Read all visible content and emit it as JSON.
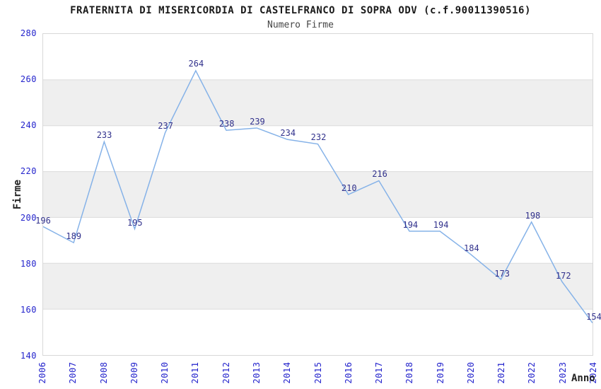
{
  "chart_data": {
    "type": "line",
    "title": "FRATERNITA DI MISERICORDIA DI CASTELFRANCO DI SOPRA ODV (c.f.90011390516)",
    "subtitle": "Numero Firme",
    "x": [
      2006,
      2007,
      2008,
      2009,
      2010,
      2011,
      2012,
      2013,
      2014,
      2015,
      2016,
      2017,
      2018,
      2019,
      2020,
      2021,
      2022,
      2023,
      2024
    ],
    "series": [
      {
        "name": "Numero Firme",
        "values": [
          196,
          189,
          233,
          195,
          237,
          264,
          238,
          239,
          234,
          232,
          210,
          216,
          194,
          194,
          184,
          173,
          198,
          172,
          154
        ]
      }
    ],
    "xlabel": "Anno",
    "ylabel": "Firme",
    "ylim": [
      140,
      280
    ],
    "ytick_step": 20,
    "yticks": [
      140,
      160,
      180,
      200,
      220,
      240,
      260,
      280
    ],
    "grid": "horizontal-gridlines-with-alternating-bands",
    "legend": "none",
    "data_labels": true
  },
  "colors": {
    "line": "#85b2e8",
    "tick_label": "#2323cc",
    "data_label": "#31318c",
    "band": "#efefef",
    "gridline": "#dcdcdc",
    "border": "#d8d8d8",
    "title": "#1a1a1a",
    "subtitle": "#454545",
    "axis_title": "#222222"
  }
}
